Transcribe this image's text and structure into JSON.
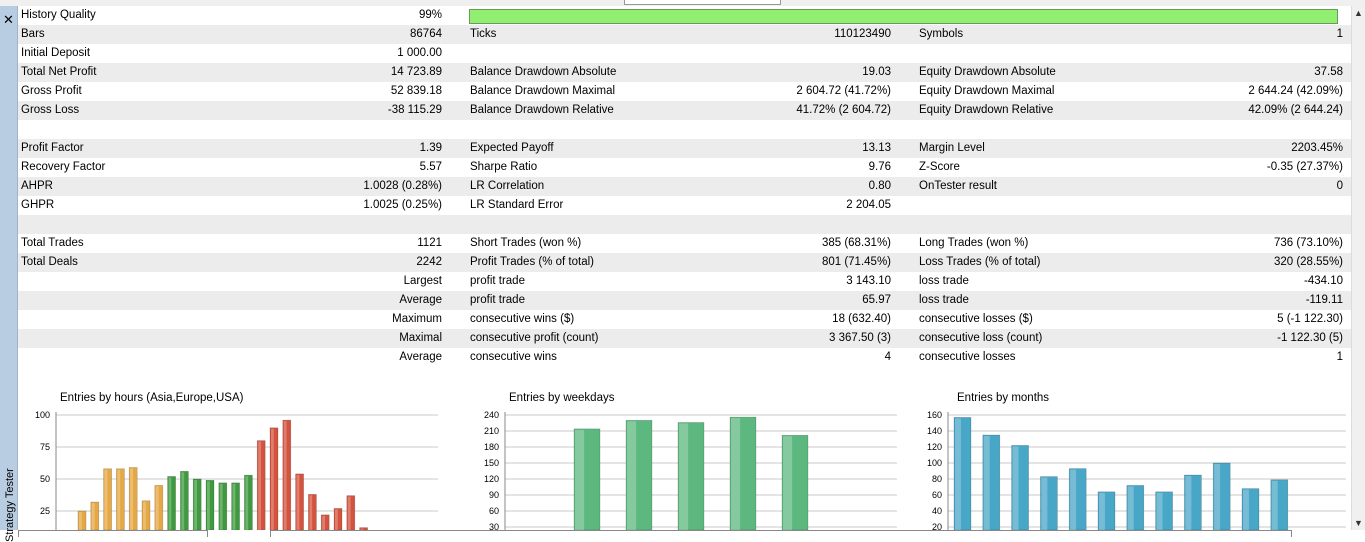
{
  "panel": {
    "vertical_title": "Strategy Tester",
    "close_icon": "close-icon"
  },
  "stats": {
    "history_quality": {
      "label": "History Quality",
      "value": "99%",
      "fill": 0.99
    },
    "rows": [
      {
        "l1": "Bars",
        "v1": "86764",
        "l2": "Ticks",
        "v2": "110123490",
        "l3": "Symbols",
        "v3": "1"
      },
      {
        "l1": "Initial Deposit",
        "v1": "1 000.00",
        "l2": "",
        "v2": "",
        "l3": "",
        "v3": ""
      },
      {
        "l1": "Total Net Profit",
        "v1": "14 723.89",
        "l2": "Balance Drawdown Absolute",
        "v2": "19.03",
        "l3": "Equity Drawdown Absolute",
        "v3": "37.58"
      },
      {
        "l1": "Gross Profit",
        "v1": "52 839.18",
        "l2": "Balance Drawdown Maximal",
        "v2": "2 604.72 (41.72%)",
        "l3": "Equity Drawdown Maximal",
        "v3": "2 644.24 (42.09%)"
      },
      {
        "l1": "Gross Loss",
        "v1": "-38 115.29",
        "l2": "Balance Drawdown Relative",
        "v2": "41.72% (2 604.72)",
        "l3": "Equity Drawdown Relative",
        "v3": "42.09% (2 644.24)"
      },
      {
        "l1": "",
        "v1": "",
        "l2": "",
        "v2": "",
        "l3": "",
        "v3": ""
      },
      {
        "l1": "Profit Factor",
        "v1": "1.39",
        "l2": "Expected Payoff",
        "v2": "13.13",
        "l3": "Margin Level",
        "v3": "2203.45%"
      },
      {
        "l1": "Recovery Factor",
        "v1": "5.57",
        "l2": "Sharpe Ratio",
        "v2": "9.76",
        "l3": "Z-Score",
        "v3": "-0.35 (27.37%)"
      },
      {
        "l1": "AHPR",
        "v1": "1.0028 (0.28%)",
        "l2": "LR Correlation",
        "v2": "0.80",
        "l3": "OnTester result",
        "v3": "0"
      },
      {
        "l1": "GHPR",
        "v1": "1.0025 (0.25%)",
        "l2": "LR Standard Error",
        "v2": "2 204.05",
        "l3": "",
        "v3": ""
      },
      {
        "l1": "",
        "v1": "",
        "l2": "",
        "v2": "",
        "l3": "",
        "v3": ""
      },
      {
        "l1": "Total Trades",
        "v1": "1121",
        "l2": "Short Trades (won %)",
        "v2": "385 (68.31%)",
        "l3": "Long Trades (won %)",
        "v3": "736 (73.10%)"
      },
      {
        "l1": "Total Deals",
        "v1": "2242",
        "l2": "Profit Trades (% of total)",
        "v2": "801 (71.45%)",
        "l3": "Loss Trades (% of total)",
        "v3": "320 (28.55%)"
      },
      {
        "l1": "",
        "v1": "Largest",
        "l2": "profit trade",
        "v2": "3 143.10",
        "l3": "loss trade",
        "v3": "-434.10"
      },
      {
        "l1": "",
        "v1": "Average",
        "l2": "profit trade",
        "v2": "65.97",
        "l3": "loss trade",
        "v3": "-119.11"
      },
      {
        "l1": "",
        "v1": "Maximum",
        "l2": "consecutive wins ($)",
        "v2": "18 (632.40)",
        "l3": "consecutive losses ($)",
        "v3": "5 (-1 122.30)"
      },
      {
        "l1": "",
        "v1": "Maximal",
        "l2": "consecutive profit (count)",
        "v2": "3 367.50 (3)",
        "l3": "consecutive loss (count)",
        "v3": "-1 122.30 (5)"
      },
      {
        "l1": "",
        "v1": "Average",
        "l2": "consecutive wins",
        "v2": "4",
        "l3": "consecutive losses",
        "v3": "1"
      }
    ]
  },
  "chart_data": [
    {
      "type": "bar",
      "title": "Entries by hours (Asia,Europe,USA)",
      "yticks": [
        "100",
        "75",
        "50",
        "25"
      ],
      "ylim": [
        0,
        100
      ],
      "grid": true,
      "values": [
        25,
        32,
        58,
        58,
        59,
        33,
        45,
        52,
        56,
        50,
        49,
        47,
        47,
        53,
        80,
        90,
        96,
        54,
        38,
        22,
        27,
        37,
        12
      ],
      "colors": [
        "#e6a845",
        "#e6a845",
        "#e6a845",
        "#e6a845",
        "#e6a845",
        "#e6a845",
        "#e6a845",
        "#3f9a3f",
        "#3f9a3f",
        "#3f9a3f",
        "#3f9a3f",
        "#3f9a3f",
        "#3f9a3f",
        "#3f9a3f",
        "#d4533e",
        "#d4533e",
        "#d4533e",
        "#d4533e",
        "#d4533e",
        "#d4533e",
        "#d4533e",
        "#d4533e",
        "#d4533e"
      ]
    },
    {
      "type": "bar",
      "title": "Entries by weekdays",
      "yticks": [
        "240",
        "210",
        "180",
        "150",
        "120",
        "90",
        "60",
        "30"
      ],
      "ylim": [
        0,
        240
      ],
      "grid": true,
      "values": [
        214,
        230,
        226,
        236,
        202
      ],
      "colors": [
        "#5cb87e",
        "#5cb87e",
        "#5cb87e",
        "#5cb87e",
        "#5cb87e"
      ]
    },
    {
      "type": "bar",
      "title": "Entries by months",
      "yticks": [
        "160",
        "140",
        "120",
        "100",
        "80",
        "60",
        "40",
        "20"
      ],
      "ylim": [
        0,
        160
      ],
      "grid": true,
      "values": [
        157,
        135,
        122,
        83,
        93,
        64,
        72,
        64,
        85,
        100,
        68,
        79
      ],
      "colors": [
        "#48a6c6",
        "#48a6c6",
        "#48a6c6",
        "#48a6c6",
        "#48a6c6",
        "#48a6c6",
        "#48a6c6",
        "#48a6c6",
        "#48a6c6",
        "#48a6c6",
        "#48a6c6",
        "#48a6c6"
      ]
    }
  ]
}
